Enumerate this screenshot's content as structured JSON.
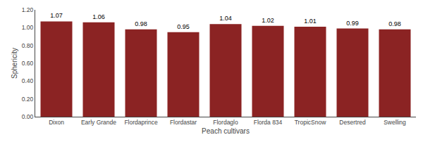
{
  "chart_data": {
    "type": "bar",
    "xlabel": "Peach cultivars",
    "ylabel": "Sphericity",
    "categories": [
      "Dixon",
      "Early Grande",
      "Flordaprince",
      "Flordastar",
      "Flordaglo",
      "Florda 834",
      "TropicSnow",
      "Desertred",
      "Swelling"
    ],
    "values": [
      1.07,
      1.06,
      0.98,
      0.95,
      1.04,
      1.02,
      1.01,
      0.99,
      0.98
    ],
    "color": "#8B2323",
    "ylim": [
      0.0,
      1.2
    ],
    "yticks": [
      {
        "value": 0.0,
        "label": "0.00"
      },
      {
        "value": 0.2,
        "label": "0.20"
      },
      {
        "value": 0.4,
        "label": "0.40"
      },
      {
        "value": 0.6,
        "label": "0.60"
      },
      {
        "value": 0.8,
        "label": "0.80"
      },
      {
        "value": 1.0,
        "label": "1.00"
      },
      {
        "value": 1.2,
        "label": "1.20"
      }
    ],
    "grid": false,
    "data_labels": true
  }
}
